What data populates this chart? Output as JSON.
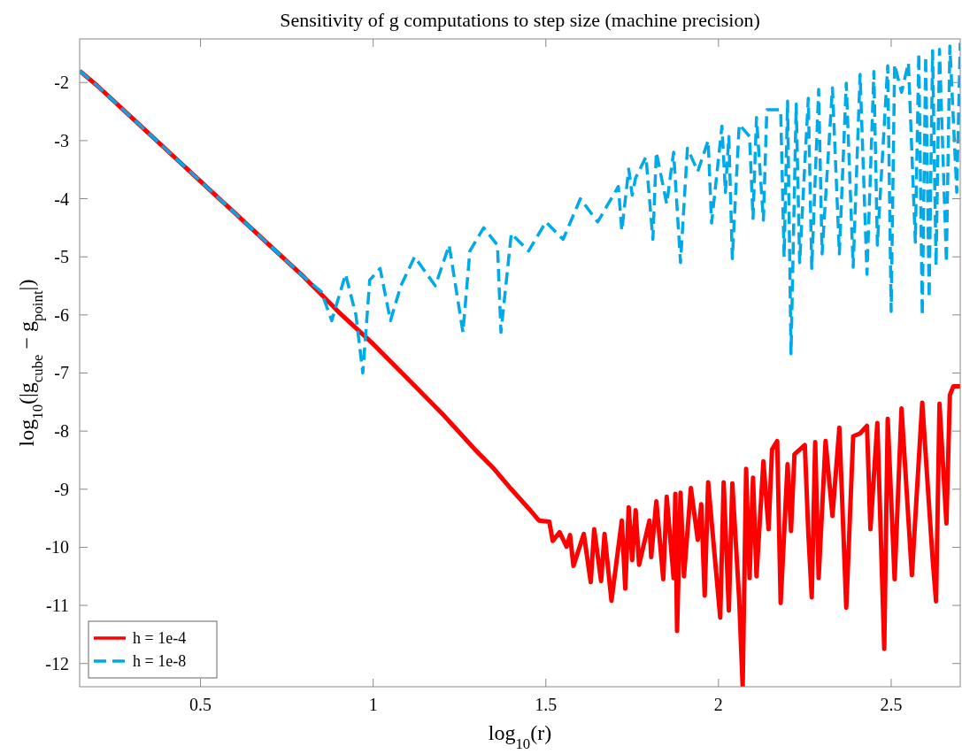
{
  "chart_data": {
    "type": "line",
    "title": "Sensitivity of g computations to step size (machine precision)",
    "xlabel": "log$_{10}$(r)",
    "ylabel": "log$_{10}$(|g$_{cube}$ − g$_{point}$|)",
    "xlim": [
      0.15,
      2.7
    ],
    "xticks": [
      0.5,
      1,
      1.5,
      2,
      2.5
    ],
    "ylim": [
      -12.4,
      -1.25
    ],
    "yticks": [
      -12,
      -11,
      -10,
      -9,
      -8,
      -7,
      -6,
      -5,
      -4,
      -3,
      -2
    ],
    "grid": false,
    "legend": "bottom left",
    "series": [
      {
        "name": "h = 1e-4",
        "color": "#ff0000",
        "line_style": "solid",
        "x": [
          0.15,
          0.2,
          0.3,
          0.4,
          0.5,
          0.6,
          0.7,
          0.8,
          0.85,
          0.9,
          1.0,
          1.1,
          1.2,
          1.3,
          1.35,
          1.4,
          1.45,
          1.48,
          1.51,
          1.52,
          1.54,
          1.56,
          1.57,
          1.58,
          1.61,
          1.63,
          1.64,
          1.66,
          1.67,
          1.69,
          1.72,
          1.73,
          1.74,
          1.75,
          1.76,
          1.77,
          1.8,
          1.805,
          1.82,
          1.84,
          1.85,
          1.87,
          1.875,
          1.88,
          1.89,
          1.9,
          1.92,
          1.94,
          1.95,
          1.96,
          1.97,
          1.99,
          2.005,
          2.015,
          2.03,
          2.04,
          2.06,
          2.07,
          2.08,
          2.09,
          2.1,
          2.11,
          2.13,
          2.145,
          2.155,
          2.17,
          2.18,
          2.2,
          2.21,
          2.22,
          2.25,
          2.26,
          2.27,
          2.28,
          2.29,
          2.31,
          2.33,
          2.35,
          2.37,
          2.39,
          2.41,
          2.43,
          2.44,
          2.46,
          2.48,
          2.49,
          2.51,
          2.53,
          2.56,
          2.59,
          2.62,
          2.63,
          2.64,
          2.66,
          2.67,
          2.68,
          2.7
        ],
        "values": [
          -1.8,
          -2.05,
          -2.6,
          -3.15,
          -3.7,
          -4.25,
          -4.8,
          -5.35,
          -5.65,
          -5.95,
          -6.5,
          -7.1,
          -7.7,
          -8.35,
          -8.65,
          -9.0,
          -9.33,
          -9.54,
          -9.56,
          -9.89,
          -9.74,
          -9.99,
          -9.79,
          -10.32,
          -9.77,
          -10.6,
          -9.69,
          -10.58,
          -9.77,
          -10.92,
          -9.54,
          -10.71,
          -9.31,
          -10.22,
          -9.36,
          -10.3,
          -9.54,
          -10.17,
          -9.21,
          -10.55,
          -9.13,
          -10.53,
          -9.08,
          -11.44,
          -9.06,
          -10.5,
          -8.98,
          -9.87,
          -9.26,
          -10.83,
          -8.88,
          -10.22,
          -11.21,
          -8.88,
          -11.09,
          -8.9,
          -10.91,
          -12.4,
          -8.65,
          -10.53,
          -8.8,
          -10.5,
          -8.52,
          -9.69,
          -8.32,
          -8.17,
          -10.96,
          -8.57,
          -9.72,
          -8.4,
          -8.24,
          -9.74,
          -10.86,
          -8.19,
          -10.53,
          -8.17,
          -9.46,
          -7.94,
          -11.04,
          -8.09,
          -8.04,
          -7.91,
          -9.69,
          -7.86,
          -11.75,
          -7.79,
          -10.55,
          -7.61,
          -10.48,
          -7.51,
          -10.2,
          -10.93,
          -7.53,
          -9.59,
          -7.38,
          -7.23,
          -7.23
        ]
      },
      {
        "name": "h = 1e-8",
        "color": "#00a9e8",
        "line_style": "dashed",
        "x": [
          0.15,
          0.2,
          0.3,
          0.4,
          0.5,
          0.6,
          0.7,
          0.8,
          0.85,
          0.88,
          0.9,
          0.92,
          0.95,
          0.97,
          0.99,
          1.02,
          1.05,
          1.08,
          1.12,
          1.18,
          1.22,
          1.26,
          1.28,
          1.32,
          1.36,
          1.37,
          1.4,
          1.45,
          1.5,
          1.55,
          1.6,
          1.65,
          1.71,
          1.72,
          1.74,
          1.75,
          1.76,
          1.79,
          1.81,
          1.82,
          1.85,
          1.87,
          1.89,
          1.91,
          1.94,
          1.97,
          1.98,
          2.01,
          2.02,
          2.03,
          2.04,
          2.06,
          2.09,
          2.1,
          2.11,
          2.13,
          2.14,
          2.18,
          2.19,
          2.2,
          2.21,
          2.225,
          2.235,
          2.26,
          2.27,
          2.29,
          2.3,
          2.33,
          2.35,
          2.37,
          2.39,
          2.41,
          2.43,
          2.45,
          2.46,
          2.49,
          2.5,
          2.51,
          2.53,
          2.55,
          2.57,
          2.58,
          2.59,
          2.6,
          2.61,
          2.62,
          2.63,
          2.64,
          2.66,
          2.67,
          2.69,
          2.7
        ],
        "values": [
          -1.8,
          -2.05,
          -2.6,
          -3.15,
          -3.7,
          -4.25,
          -4.8,
          -5.35,
          -5.6,
          -6.1,
          -5.7,
          -5.3,
          -6.0,
          -7.0,
          -5.4,
          -5.2,
          -6.1,
          -5.5,
          -5.0,
          -5.5,
          -4.8,
          -6.3,
          -4.9,
          -4.5,
          -4.8,
          -6.3,
          -4.6,
          -4.9,
          -4.4,
          -4.7,
          -4.0,
          -4.4,
          -3.79,
          -4.55,
          -3.49,
          -3.94,
          -3.64,
          -3.28,
          -4.7,
          -3.2,
          -4.09,
          -3.2,
          -5.1,
          -3.13,
          -3.53,
          -3.0,
          -4.42,
          -2.75,
          -3.89,
          -2.93,
          -5.03,
          -2.72,
          -2.93,
          -4.34,
          -2.6,
          -4.37,
          -2.47,
          -2.47,
          -5.0,
          -2.32,
          -6.67,
          -2.37,
          -5.1,
          -2.27,
          -5.2,
          -2.12,
          -4.95,
          -2.09,
          -4.95,
          -2.01,
          -5.18,
          -1.86,
          -5.3,
          -1.81,
          -4.8,
          -1.71,
          -5.94,
          -1.69,
          -2.17,
          -1.66,
          -4.75,
          -1.5,
          -6.01,
          -1.55,
          -5.71,
          -1.45,
          -5.15,
          -1.43,
          -5.1,
          -1.37,
          -3.89,
          -1.32
        ]
      }
    ]
  }
}
